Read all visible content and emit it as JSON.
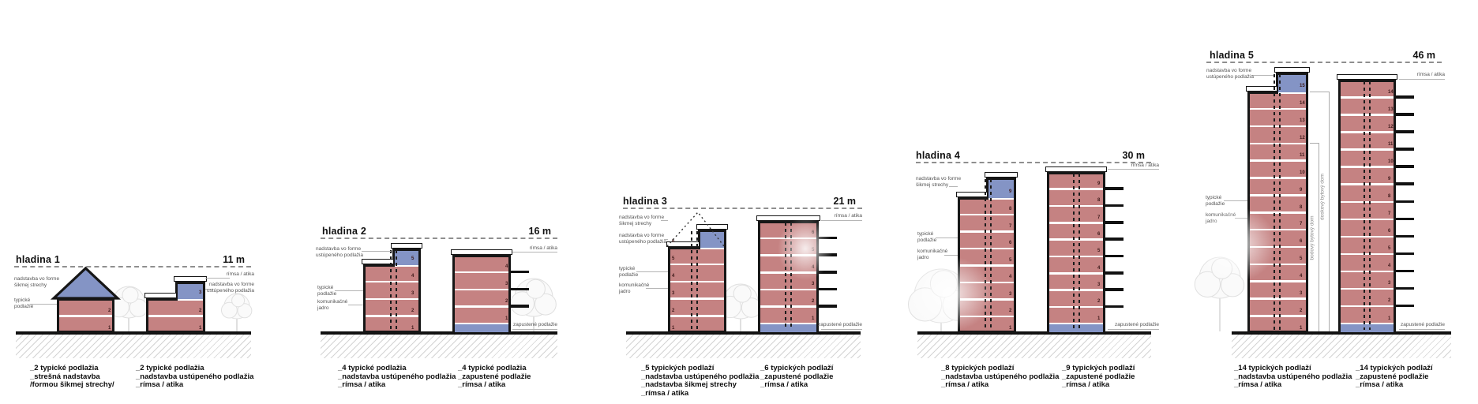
{
  "colors": {
    "facade_red": "#c58282",
    "accent_blue": "#8494c5",
    "outline_black": "#161616",
    "label_gray": "#555555",
    "leader_gray": "#b5b5b5",
    "ground_black": "#111111",
    "level_line_gray": "#8f8f8f"
  },
  "groups": [
    {
      "id": "hladina-1",
      "title": "hladina 1",
      "height_label": "11 m",
      "left_labels": [
        {
          "lines": [
            "nadstavba vo forme",
            "šikmej strechy"
          ]
        },
        {
          "lines": [
            "typické",
            "podlažie"
          ]
        }
      ],
      "right_labels": [
        {
          "lines": [
            "rímsa / atika"
          ]
        },
        {
          "lines": [
            "nadstavba vo forme",
            "ustúpeného podlažia"
          ]
        }
      ],
      "buildings": [
        {
          "type": "pitched-roof",
          "typical_floors": 2
        },
        {
          "type": "stepped-top",
          "typical_floors": 2,
          "top_floor_number": "3"
        }
      ],
      "captions": [
        {
          "lines": [
            "_2 typické podlažia",
            "_strešná nadstavba",
            "/formou šikmej strechy/"
          ]
        },
        {
          "lines": [
            "_2 typické podlažia",
            "_nadstavba ustúpeného podlažia",
            "_rímsa / atika"
          ]
        }
      ]
    },
    {
      "id": "hladina-2",
      "title": "hladina 2",
      "height_label": "16 m",
      "left_labels": [
        {
          "lines": [
            "nadstavba vo forme",
            "ustúpeného podlažia"
          ]
        },
        {
          "lines": [
            "typické",
            "podlažie"
          ]
        },
        {
          "lines": [
            "komunikačné",
            "jadro"
          ]
        }
      ],
      "right_labels": [
        {
          "lines": [
            "rímsa / atika"
          ]
        },
        {
          "lines": [
            "zapustené podlažie"
          ]
        }
      ],
      "buildings": [
        {
          "type": "stepped-top",
          "typical_floors": 4,
          "top_floor_number": "5"
        },
        {
          "type": "recessed-base",
          "typical_floors": 4
        }
      ],
      "captions": [
        {
          "lines": [
            "_4 typické podlažia",
            "_nadstavba ustúpeného podlažia",
            "_rímsa / atika"
          ]
        },
        {
          "lines": [
            "_4 typické podlažia",
            "_zapustené podlažie",
            "_rímsa / atika"
          ]
        }
      ]
    },
    {
      "id": "hladina-3",
      "title": "hladina 3",
      "height_label": "21 m",
      "left_labels": [
        {
          "lines": [
            "nadstavba vo forme",
            "šikmej strechy"
          ]
        },
        {
          "lines": [
            "nadstavba vo forme",
            "ustúpeného podlažia"
          ]
        },
        {
          "lines": [
            "typické",
            "podlažie"
          ]
        },
        {
          "lines": [
            "komunikačné",
            "jadro"
          ]
        }
      ],
      "right_labels": [
        {
          "lines": [
            "rímsa / atika"
          ]
        },
        {
          "lines": [
            "zapustené podlažie"
          ]
        }
      ],
      "buildings": [
        {
          "type": "stepped-top",
          "typical_floors": 5,
          "top_floor_number": "6",
          "dotted_roof_outline": true
        },
        {
          "type": "recessed-base",
          "typical_floors": 6
        }
      ],
      "captions": [
        {
          "lines": [
            "_5 typických podlaží",
            "_nadstavba ustúpeného podlažia",
            "_nadstavba šikmej strechy",
            "_rímsa / atika"
          ]
        },
        {
          "lines": [
            "_6 typických podlaží",
            "_zapustené podlažie",
            "_rímsa / atika"
          ]
        }
      ]
    },
    {
      "id": "hladina-4",
      "title": "hladina 4",
      "height_label": "30 m",
      "left_labels": [
        {
          "lines": [
            "nadstavba vo forme",
            "šikmej strechy"
          ]
        },
        {
          "lines": [
            "typické",
            "podlažie"
          ]
        },
        {
          "lines": [
            "komunikačné",
            "jadro"
          ]
        }
      ],
      "right_labels": [
        {
          "lines": [
            "rímsa / atika"
          ]
        },
        {
          "lines": [
            "zapustené podlažie"
          ]
        }
      ],
      "buildings": [
        {
          "type": "stepped-top",
          "typical_floors": 8,
          "top_floor_number": "9"
        },
        {
          "type": "recessed-base",
          "typical_floors": 9
        }
      ],
      "captions": [
        {
          "lines": [
            "_8 typických podlaží",
            "_nadstavba ustúpeného podlažia",
            "_rímsa / atika"
          ]
        },
        {
          "lines": [
            "_9 typických podlaží",
            "_zapustené podlažie",
            "_rímsa / atika"
          ]
        }
      ]
    },
    {
      "id": "hladina-5",
      "title": "hladina 5",
      "height_label": "46 m",
      "left_labels": [
        {
          "lines": [
            "nadstavba vo forme",
            "ustúpeného podlažia"
          ]
        },
        {
          "lines": [
            "typické",
            "podlažie"
          ]
        },
        {
          "lines": [
            "komunikačné",
            "jadro"
          ]
        }
      ],
      "right_labels": [
        {
          "lines": [
            "rímsa / atika"
          ]
        },
        {
          "lines": [
            "zapustené podlažie"
          ]
        }
      ],
      "building_type_notes": [
        {
          "text": "doskový bytový dom"
        },
        {
          "text": "bodový bytový dom"
        }
      ],
      "buildings": [
        {
          "type": "stepped-top",
          "typical_floors": 14,
          "top_floor_number": "15"
        },
        {
          "type": "recessed-base",
          "typical_floors": 14
        }
      ],
      "captions": [
        {
          "lines": [
            "_14 typických podlaží",
            "_nadstavba ustúpeného podlažia",
            "_rímsa / atika"
          ]
        },
        {
          "lines": [
            "_14 typických podlaží",
            "_zapustené podlažie",
            "_rímsa / atika"
          ]
        }
      ]
    }
  ]
}
